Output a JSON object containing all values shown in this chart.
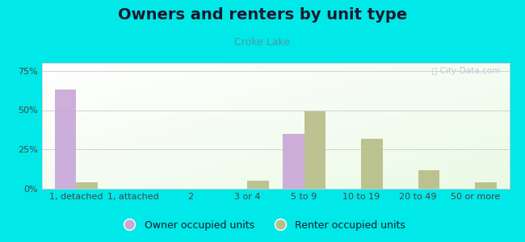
{
  "title": "Owners and renters by unit type",
  "subtitle": "Croke Lake",
  "categories": [
    "1, detached",
    "1, attached",
    "2",
    "3 or 4",
    "5 to 9",
    "10 to 19",
    "20 to 49",
    "50 or more"
  ],
  "owner_values": [
    63,
    0,
    0,
    0,
    35,
    0,
    0,
    0
  ],
  "renter_values": [
    4,
    0,
    0,
    5,
    49,
    32,
    12,
    4
  ],
  "owner_color": "#c9a8d8",
  "renter_color": "#b8be88",
  "bg_color": "#00e8e8",
  "ylim": [
    0,
    80
  ],
  "yticks": [
    0,
    25,
    50,
    75
  ],
  "ytick_labels": [
    "0%",
    "25%",
    "50%",
    "75%"
  ],
  "legend_owner": "Owner occupied units",
  "legend_renter": "Renter occupied units",
  "bar_width": 0.38,
  "title_fontsize": 14,
  "subtitle_fontsize": 9,
  "axis_fontsize": 8,
  "legend_fontsize": 9,
  "title_color": "#1a1a2e",
  "subtitle_color": "#4a9aaa",
  "tick_color": "#444444",
  "grid_color": "#cccccc",
  "watermark_color": "#b0c8d0"
}
